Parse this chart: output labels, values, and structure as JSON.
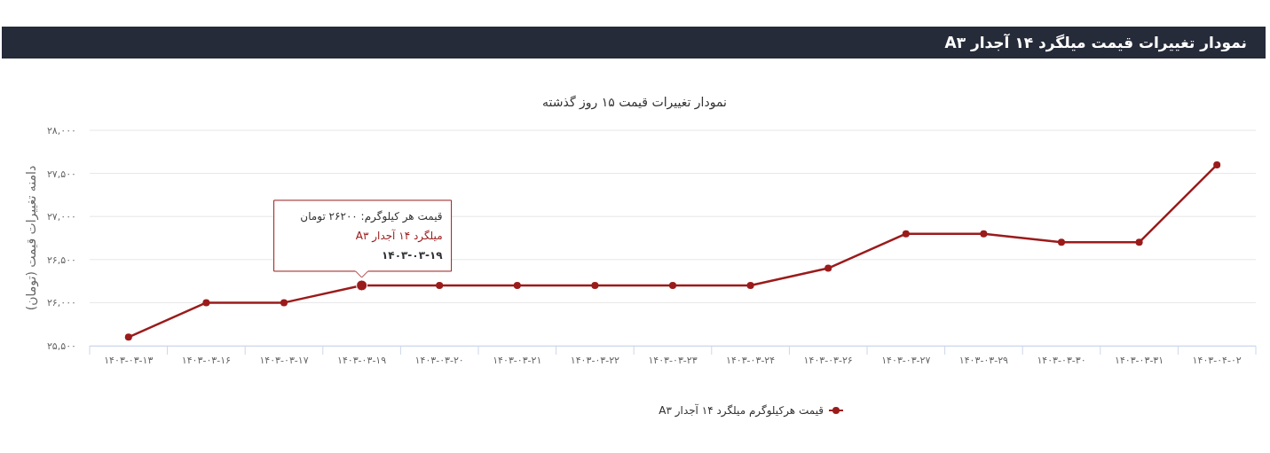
{
  "chart_data": {
    "type": "line",
    "title": "نمودار تغییرات قیمت میلگرد ۱۴ آجدار A۳",
    "subtitle": "نمودار تغییرات قیمت ۱۵ روز گذشته",
    "ylabel": "دامنه تغییرات قیمت (تومان)",
    "categories": [
      "۱۴۰۳-۰۳-۱۳",
      "۱۴۰۳-۰۳-۱۶",
      "۱۴۰۳-۰۳-۱۷",
      "۱۴۰۳-۰۳-۱۹",
      "۱۴۰۳-۰۳-۲۰",
      "۱۴۰۳-۰۳-۲۱",
      "۱۴۰۳-۰۳-۲۲",
      "۱۴۰۳-۰۳-۲۳",
      "۱۴۰۳-۰۳-۲۴",
      "۱۴۰۳-۰۳-۲۶",
      "۱۴۰۳-۰۳-۲۷",
      "۱۴۰۳-۰۳-۲۹",
      "۱۴۰۳-۰۳-۳۰",
      "۱۴۰۳-۰۳-۳۱",
      "۱۴۰۳-۰۴-۰۲"
    ],
    "series": [
      {
        "name": "قیمت هرکیلوگرم میلگرد ۱۴ آجدار A۳",
        "color": "#9b1b1b",
        "values": [
          25600,
          26000,
          26000,
          26200,
          26200,
          26200,
          26200,
          26200,
          26200,
          26400,
          26800,
          26800,
          26700,
          26700,
          27600
        ]
      }
    ],
    "ylim": [
      25500,
      28000
    ],
    "yticks": [
      {
        "value": 25500,
        "label": "۲۵,۵۰۰"
      },
      {
        "value": 26000,
        "label": "۲۶,۰۰۰"
      },
      {
        "value": 26500,
        "label": "۲۶,۵۰۰"
      },
      {
        "value": 27000,
        "label": "۲۷,۰۰۰"
      },
      {
        "value": 27500,
        "label": "۲۷,۵۰۰"
      },
      {
        "value": 28000,
        "label": "۲۸,۰۰۰"
      }
    ],
    "grid": "y",
    "legend": "bottom",
    "marker": "circle",
    "line_style": "solid",
    "annotations": [
      "قیمت هر کیلوگرم: ۲۶۲۰۰ تومان",
      "میلگرد ۱۴ آجدار A۳",
      "۱۴۰۳-۰۳-۱۹"
    ]
  }
}
